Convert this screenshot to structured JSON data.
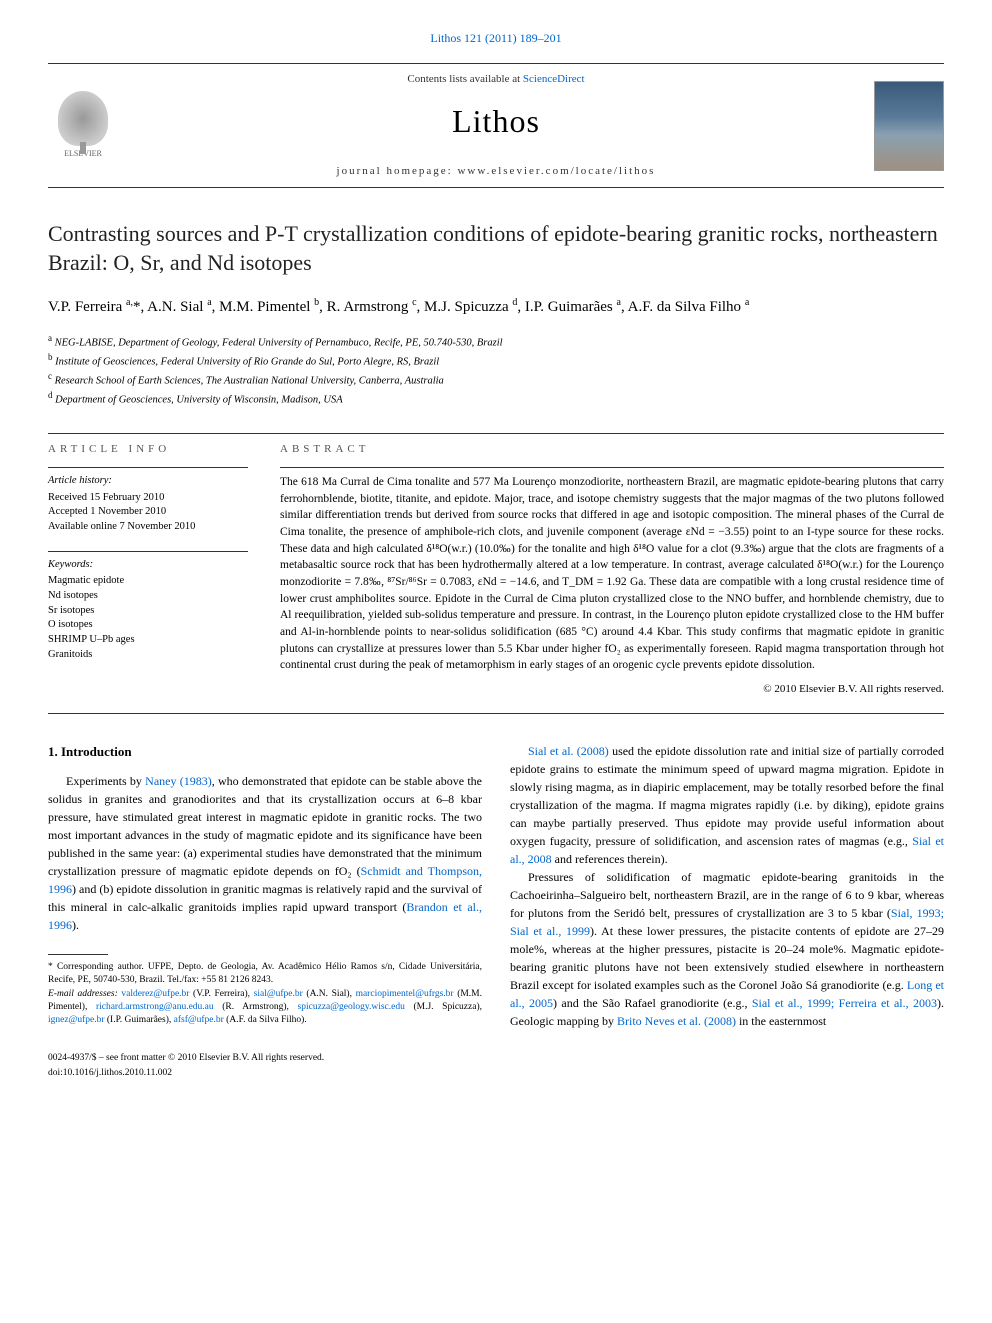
{
  "top_citation": "Lithos 121 (2011) 189–201",
  "header": {
    "contents_prefix": "Contents lists available at ",
    "contents_link": "ScienceDirect",
    "journal": "Lithos",
    "homepage_prefix": "journal homepage: ",
    "homepage": "www.elsevier.com/locate/lithos",
    "publisher": "ELSEVIER"
  },
  "title": "Contrasting sources and P-T crystallization conditions of epidote-bearing granitic rocks, northeastern Brazil: O, Sr, and Nd isotopes",
  "authors_html": "V.P. Ferreira <sup>a,</sup>*, A.N. Sial <sup>a</sup>, M.M. Pimentel <sup>b</sup>, R. Armstrong <sup>c</sup>, M.J. Spicuzza <sup>d</sup>, I.P. Guimarães <sup>a</sup>, A.F. da Silva Filho <sup>a</sup>",
  "affiliations": [
    {
      "sup": "a",
      "text": "NEG-LABISE, Department of Geology, Federal University of Pernambuco, Recife, PE, 50.740-530, Brazil"
    },
    {
      "sup": "b",
      "text": "Institute of Geosciences, Federal University of Rio Grande do Sul, Porto Alegre, RS, Brazil"
    },
    {
      "sup": "c",
      "text": "Research School of Earth Sciences, The Australian National University, Canberra, Australia"
    },
    {
      "sup": "d",
      "text": "Department of Geosciences, University of Wisconsin, Madison, USA"
    }
  ],
  "article_info": {
    "label": "ARTICLE INFO",
    "history_heading": "Article history:",
    "history": [
      "Received 15 February 2010",
      "Accepted 1 November 2010",
      "Available online 7 November 2010"
    ],
    "keywords_heading": "Keywords:",
    "keywords": [
      "Magmatic epidote",
      "Nd isotopes",
      "Sr isotopes",
      "O isotopes",
      "SHRIMP U–Pb ages",
      "Granitoids"
    ]
  },
  "abstract": {
    "label": "ABSTRACT",
    "text": "The 618 Ma Curral de Cima tonalite and 577 Ma Lourenço monzodiorite, northeastern Brazil, are magmatic epidote-bearing plutons that carry ferrohornblende, biotite, titanite, and epidote. Major, trace, and isotope chemistry suggests that the major magmas of the two plutons followed similar differentiation trends but derived from source rocks that differed in age and isotopic composition. The mineral phases of the Curral de Cima tonalite, the presence of amphibole-rich clots, and juvenile component (average εNd = −3.55) point to an I-type source for these rocks. These data and high calculated δ¹⁸O(w.r.) (10.0‰) for the tonalite and high δ¹⁸O value for a clot (9.3‰) argue that the clots are fragments of a metabasaltic source rock that has been hydrothermally altered at a low temperature. In contrast, average calculated δ¹⁸O(w.r.) for the Lourenço monzodiorite = 7.8‰, ⁸⁷Sr/⁸⁶Sr = 0.7083, εNd = −14.6, and T_DM = 1.92 Ga. These data are compatible with a long crustal residence time of lower crust amphibolites source. Epidote in the Curral de Cima pluton crystallized close to the NNO buffer, and hornblende chemistry, due to Al reequilibration, yielded sub-solidus temperature and pressure. In contrast, in the Lourenço pluton epidote crystallized close to the HM buffer and Al-in-hornblende points to near-solidus solidification (685 °C) around 4.4 Kbar. This study confirms that magmatic epidote in granitic plutons can crystallize at pressures lower than 5.5 Kbar under higher fO₂ as experimentally foreseen. Rapid magma transportation through hot continental crust during the peak of metamorphism in early stages of an orogenic cycle prevents epidote dissolution.",
    "copyright": "© 2010 Elsevier B.V. All rights reserved."
  },
  "intro": {
    "heading": "1. Introduction",
    "p1_pre": "Experiments by ",
    "p1_cite1": "Naney (1983)",
    "p1_mid1": ", who demonstrated that epidote can be stable above the solidus in granites and granodiorites and that its crystallization occurs at 6–8 kbar pressure, have stimulated great interest in magmatic epidote in granitic rocks. The two most important advances in the study of magmatic epidote and its significance have been published in the same year: (a) experimental studies have demonstrated that the minimum crystallization pressure of magmatic epidote depends on fO₂ (",
    "p1_cite2": "Schmidt and Thompson, 1996",
    "p1_mid2": ") and (b) epidote dissolution in granitic magmas is relatively rapid and the survival of this mineral in calc-alkalic granitoids implies rapid upward transport (",
    "p1_cite3": "Brandon et al., 1996",
    "p1_end": ").",
    "p2_cite1": "Sial et al. (2008)",
    "p2_mid1": " used the epidote dissolution rate and initial size of partially corroded epidote grains to estimate the minimum speed of upward magma migration. Epidote in slowly rising magma, as in diapiric emplacement, may be totally resorbed before the final crystallization of the magma. If magma migrates rapidly (i.e. by diking), epidote grains can maybe partially preserved. Thus epidote may provide useful information about oxygen fugacity, pressure of solidification, and ascension rates of magmas (e.g., ",
    "p2_cite2": "Sial et al., 2008",
    "p2_end": " and references therein).",
    "p3_pre": "Pressures of solidification of magmatic epidote-bearing granitoids in the Cachoeirinha–Salgueiro belt, northeastern Brazil, are in the range of 6 to 9 kbar, whereas for plutons from the Seridó belt, pressures of crystallization are 3 to 5 kbar (",
    "p3_cite1": "Sial, 1993; Sial et al., 1999",
    "p3_mid1": "). At these lower pressures, the pistacite contents of epidote are 27–29 mole%, whereas at the higher pressures, pistacite is 20–24 mole%. Magmatic epidote-bearing granitic plutons have not been extensively studied elsewhere in northeastern Brazil except for isolated examples such as the Coronel João Sá granodiorite (e.g. ",
    "p3_cite2": "Long et al., 2005",
    "p3_mid2": ") and the São Rafael granodiorite (e.g., ",
    "p3_cite3": "Sial et al., 1999; Ferreira et al., 2003",
    "p3_mid3": "). Geologic mapping by ",
    "p3_cite4": "Brito Neves et al. (2008)",
    "p3_end": " in the easternmost"
  },
  "footnotes": {
    "corr": "* Corresponding author. UFPE, Depto. de Geologia, Av. Acadêmico Hélio Ramos s/n, Cidade Universitária, Recife, PE, 50740-530, Brazil. Tel./fax: +55 81 2126 8243.",
    "email_label": "E-mail addresses: ",
    "emails": [
      {
        "addr": "valderez@ufpe.br",
        "who": " (V.P. Ferreira), "
      },
      {
        "addr": "sial@ufpe.br",
        "who": " (A.N. Sial), "
      },
      {
        "addr": "marciopimentel@ufrgs.br",
        "who": " (M.M. Pimentel), "
      },
      {
        "addr": "richard.armstrong@anu.edu.au",
        "who": " (R. Armstrong), "
      },
      {
        "addr": "spicuzza@geology.wisc.edu",
        "who": " (M.J. Spicuzza), "
      },
      {
        "addr": "ignez@ufpe.br",
        "who": " (I.P. Guimarães), "
      },
      {
        "addr": "afsf@ufpe.br",
        "who": " (A.F. da Silva Filho)."
      }
    ]
  },
  "bottom": {
    "left1": "0024-4937/$ – see front matter © 2010 Elsevier B.V. All rights reserved.",
    "left2": "doi:10.1016/j.lithos.2010.11.002"
  }
}
